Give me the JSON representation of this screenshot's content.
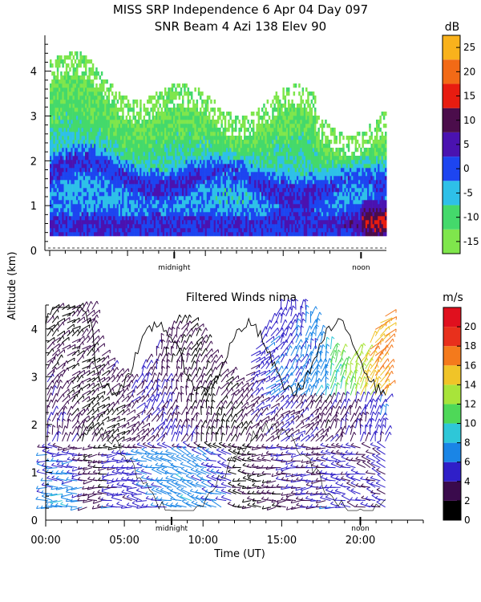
{
  "colors": {
    "snr": [
      "#7fe64c",
      "#44d96b",
      "#2ec0e8",
      "#1d45f0",
      "#4a12b0",
      "#4b0d4b",
      "#e81c10",
      "#f26a16",
      "#f9b21c"
    ],
    "wind": [
      "#000000",
      "#3a0a4c",
      "#2f1fc8",
      "#1a85e6",
      "#2ec7d8",
      "#4ed858",
      "#a8e43a",
      "#f0c428",
      "#f47a1c",
      "#e8301c",
      "#e0101e"
    ]
  },
  "chart_data": [
    {
      "type": "heatmap",
      "title": "MISS SRP Independence    6 Apr 04 Day 097",
      "subtitle": "SNR Beam 4 Azi 138 Elev 90",
      "ylabel": "Altitude (km)",
      "xlabel": "",
      "ylim": [
        0,
        4.8
      ],
      "xlim": [
        0,
        24
      ],
      "yticks": [
        0,
        1,
        2,
        3,
        4
      ],
      "markers": [
        {
          "x": 8,
          "label": "midnight"
        },
        {
          "x": 20,
          "label": "noon"
        }
      ],
      "colorbar": {
        "unit": "dB",
        "ticks": [
          -15,
          -10,
          -5,
          0,
          5,
          10,
          15,
          20,
          25
        ],
        "bins": [
          -17.5,
          -12.5,
          -7.5,
          -2.5,
          2.5,
          7.5,
          12.5,
          17.5,
          22.5,
          27.5
        ]
      },
      "data_extent_hours": [
        0,
        21.6
      ]
    },
    {
      "type": "scatter",
      "title": "Filtered Winds nima",
      "xlabel": "Time (UT)",
      "ylabel": "Altitude (km)",
      "ylim": [
        0,
        4.5
      ],
      "xlim": [
        0,
        24
      ],
      "yticks": [
        0,
        1,
        2,
        3,
        4
      ],
      "xticks": [
        0,
        5,
        10,
        15,
        20
      ],
      "xticklabels": [
        "00:00",
        "05:00",
        "10:00",
        "15:00",
        "20:00"
      ],
      "markers": [
        {
          "x": 8,
          "label": "midnight"
        },
        {
          "x": 20,
          "label": "noon"
        }
      ],
      "colorbar": {
        "unit": "m/s",
        "ticks": [
          0,
          2,
          4,
          6,
          8,
          10,
          12,
          14,
          16,
          18,
          20
        ],
        "max": 22
      },
      "data_extent_hours": [
        0,
        21.6
      ]
    }
  ]
}
